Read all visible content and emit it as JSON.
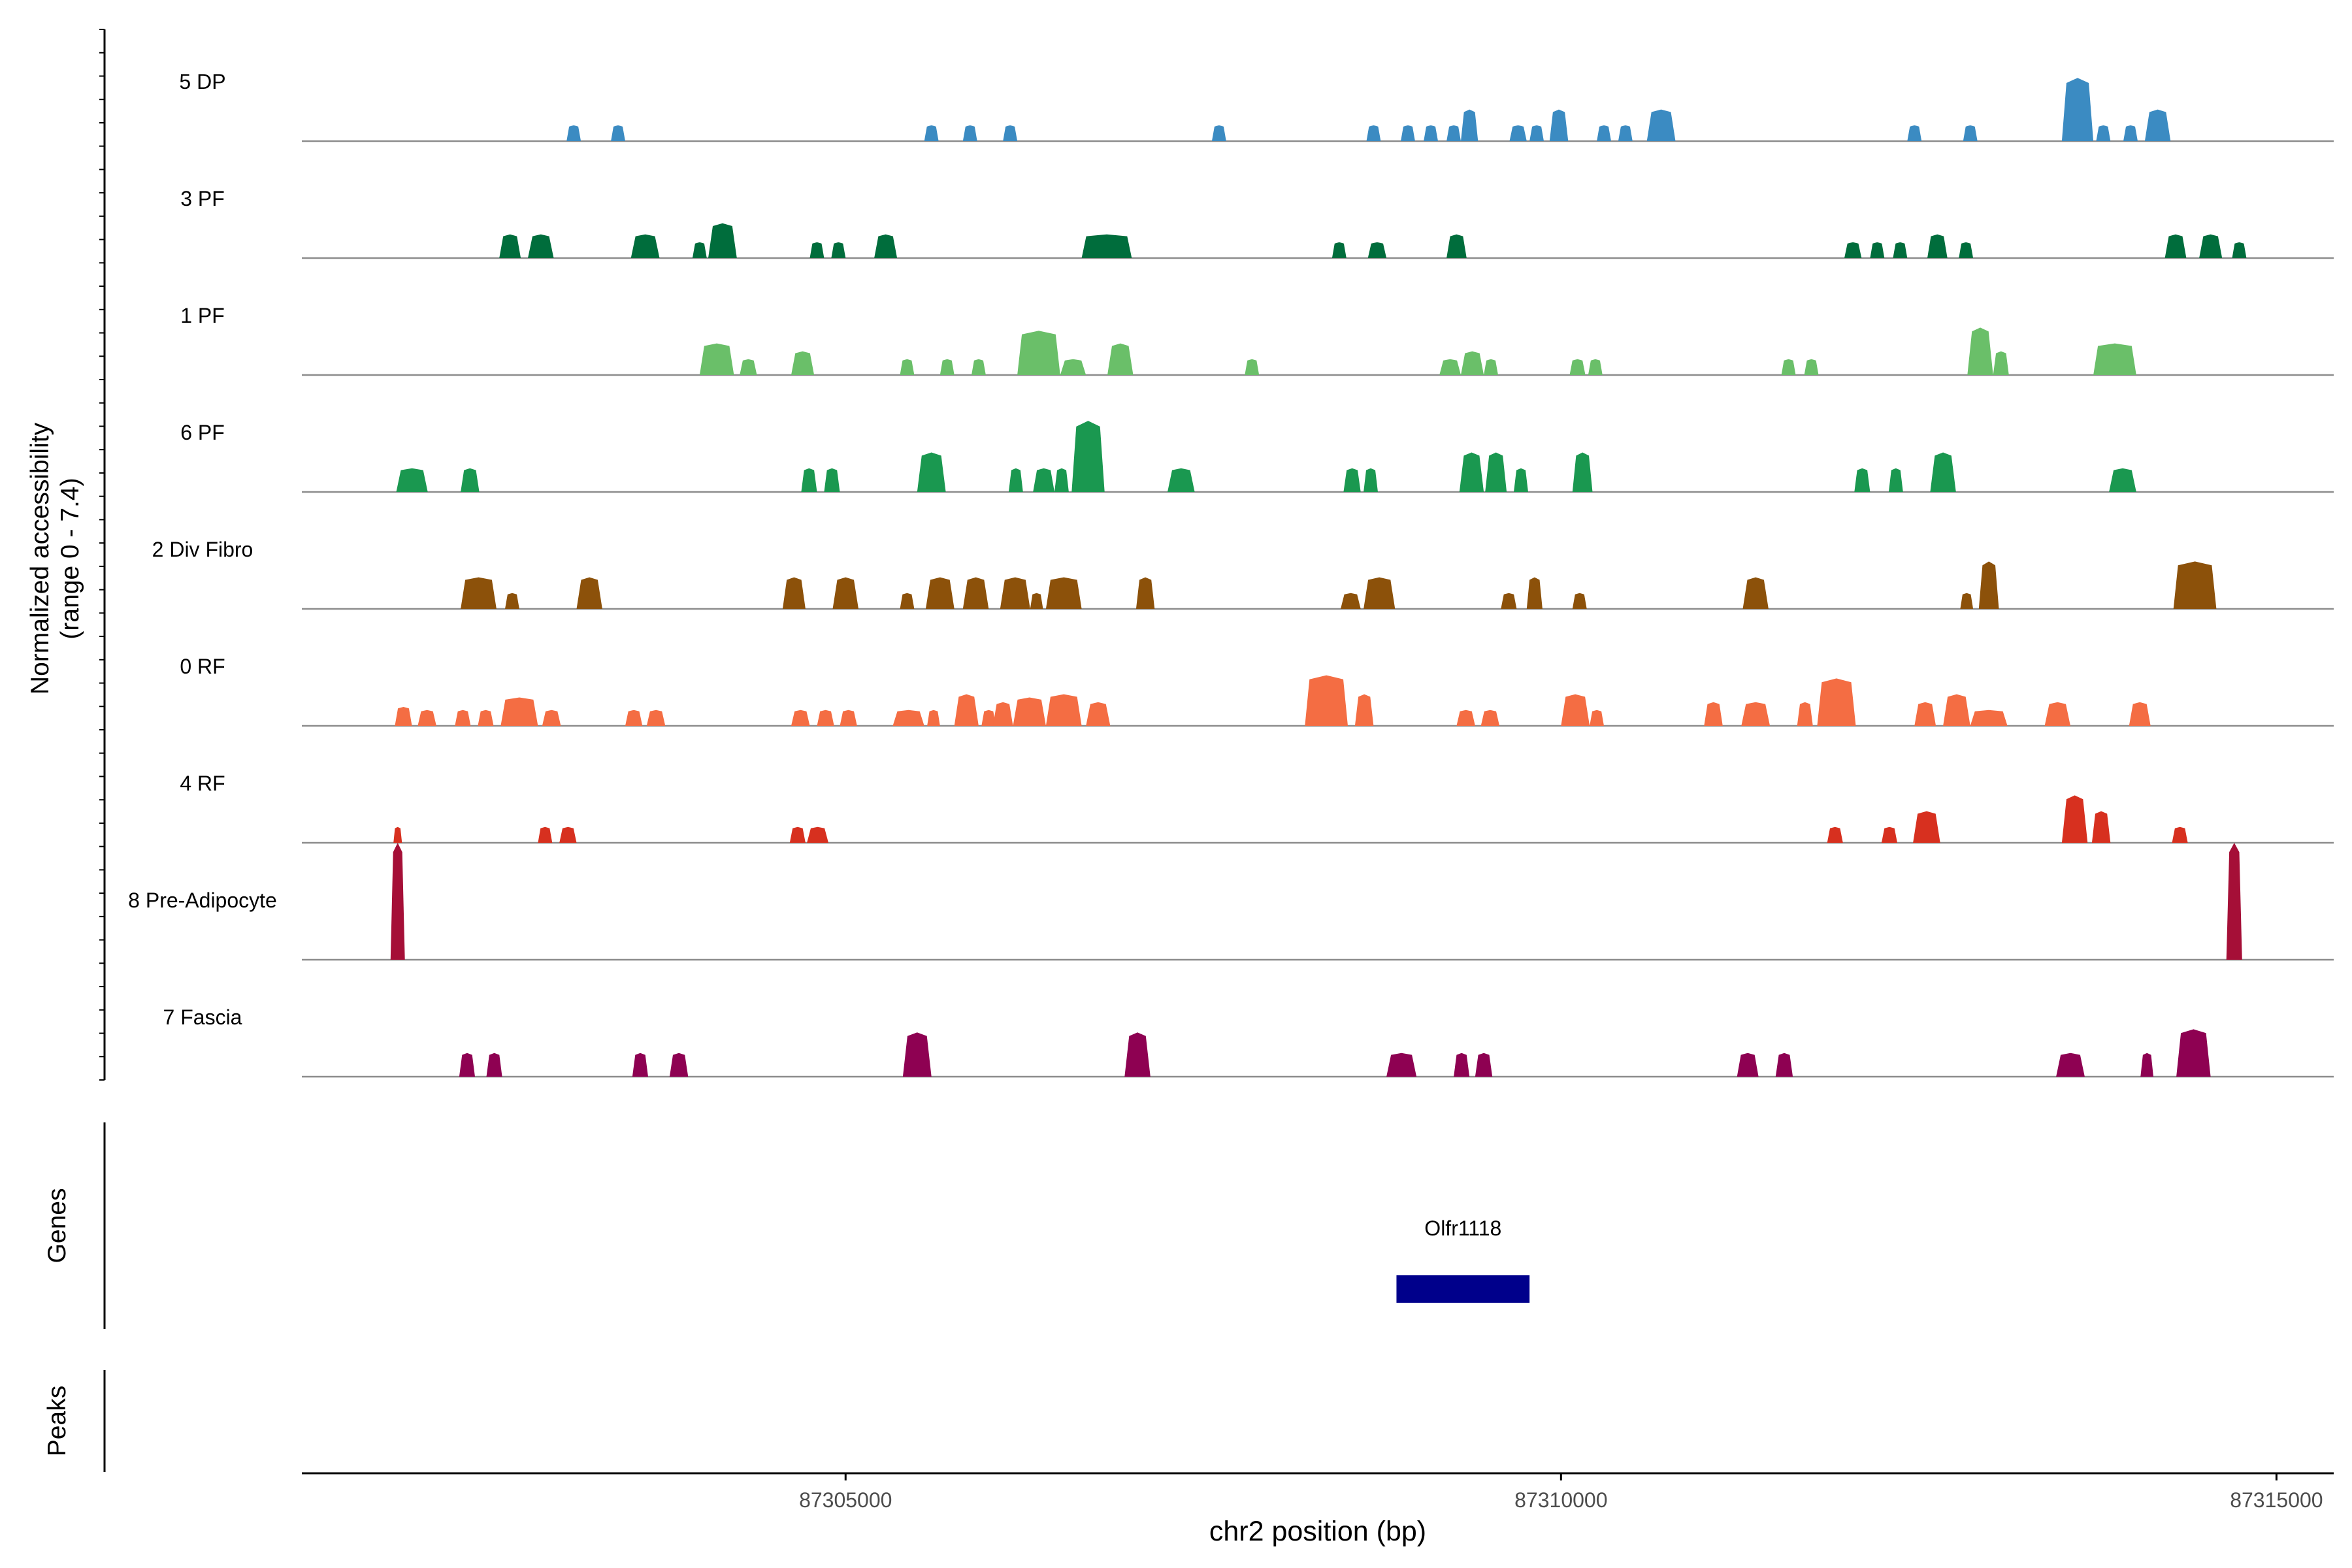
{
  "chart_data": {
    "type": "area",
    "title": "",
    "ylabel_line1": "Normalized accessibility",
    "ylabel_line2": "(range 0 - 7.4)",
    "ylim": [
      0,
      7.4
    ],
    "xlabel": "chr2 position (bp)",
    "xlim": [
      87301200,
      87315400
    ],
    "xticks": [
      87305000,
      87310000,
      87315000
    ],
    "xtick_labels": [
      "87305000",
      "87310000",
      "87315000"
    ],
    "track_labels": {
      "genes": "Genes",
      "peaks": "Peaks"
    },
    "series": [
      {
        "name": "5 DP",
        "color": "#3B8BC2",
        "peaks": [
          [
            87303050,
            87303150,
            1.0
          ],
          [
            87303360,
            87303460,
            1.0
          ],
          [
            87305550,
            87305650,
            1.0
          ],
          [
            87305820,
            87305920,
            1.0
          ],
          [
            87306100,
            87306200,
            1.0
          ],
          [
            87307560,
            87307660,
            1.0
          ],
          [
            87308640,
            87308740,
            1.0
          ],
          [
            87308880,
            87308980,
            1.0
          ],
          [
            87309040,
            87309140,
            1.0
          ],
          [
            87309200,
            87309300,
            1.0
          ],
          [
            87309300,
            87309420,
            2.0
          ],
          [
            87309640,
            87309760,
            1.0
          ],
          [
            87309780,
            87309880,
            1.0
          ],
          [
            87309920,
            87310050,
            2.0
          ],
          [
            87310250,
            87310350,
            1.0
          ],
          [
            87310400,
            87310500,
            1.0
          ],
          [
            87310600,
            87310800,
            2.0
          ],
          [
            87312420,
            87312520,
            1.0
          ],
          [
            87312810,
            87312910,
            1.0
          ],
          [
            87313500,
            87313720,
            4.0
          ],
          [
            87313740,
            87313840,
            1.0
          ],
          [
            87313930,
            87314030,
            1.0
          ],
          [
            87314080,
            87314260,
            2.0
          ]
        ]
      },
      {
        "name": "3 PF",
        "color": "#006D3C",
        "peaks": [
          [
            87302580,
            87302730,
            1.5
          ],
          [
            87302780,
            87302960,
            1.5
          ],
          [
            87303500,
            87303700,
            1.5
          ],
          [
            87303930,
            87304030,
            1.0
          ],
          [
            87304040,
            87304240,
            2.2
          ],
          [
            87304750,
            87304850,
            1.0
          ],
          [
            87304900,
            87305000,
            1.0
          ],
          [
            87305200,
            87305360,
            1.5
          ],
          [
            87306650,
            87307000,
            1.5
          ],
          [
            87308400,
            87308500,
            1.0
          ],
          [
            87308650,
            87308780,
            1.0
          ],
          [
            87309200,
            87309340,
            1.5
          ],
          [
            87311980,
            87312100,
            1.0
          ],
          [
            87312160,
            87312260,
            1.0
          ],
          [
            87312320,
            87312420,
            1.0
          ],
          [
            87312560,
            87312700,
            1.5
          ],
          [
            87312780,
            87312880,
            1.0
          ],
          [
            87314220,
            87314370,
            1.5
          ],
          [
            87314460,
            87314620,
            1.5
          ],
          [
            87314690,
            87314790,
            1.0
          ]
        ]
      },
      {
        "name": "1 PF",
        "color": "#6ABF69",
        "peaks": [
          [
            87303980,
            87304220,
            2.0
          ],
          [
            87304260,
            87304380,
            1.0
          ],
          [
            87304620,
            87304780,
            1.5
          ],
          [
            87305380,
            87305480,
            1.0
          ],
          [
            87305660,
            87305760,
            1.0
          ],
          [
            87305880,
            87305980,
            1.0
          ],
          [
            87306200,
            87306500,
            2.8
          ],
          [
            87306500,
            87306680,
            1.0
          ],
          [
            87306830,
            87307010,
            2.0
          ],
          [
            87307790,
            87307890,
            1.0
          ],
          [
            87309150,
            87309300,
            1.0
          ],
          [
            87309300,
            87309460,
            1.5
          ],
          [
            87309460,
            87309560,
            1.0
          ],
          [
            87310060,
            87310170,
            1.0
          ],
          [
            87310190,
            87310290,
            1.0
          ],
          [
            87311540,
            87311640,
            1.0
          ],
          [
            87311700,
            87311800,
            1.0
          ],
          [
            87312840,
            87313020,
            3.0
          ],
          [
            87313020,
            87313130,
            1.5
          ],
          [
            87313720,
            87314020,
            2.0
          ]
        ]
      },
      {
        "name": "6 PF",
        "color": "#1A9850",
        "peaks": [
          [
            87301860,
            87302080,
            1.5
          ],
          [
            87302310,
            87302440,
            1.5
          ],
          [
            87304690,
            87304800,
            1.5
          ],
          [
            87304850,
            87304960,
            1.5
          ],
          [
            87305500,
            87305700,
            2.5
          ],
          [
            87306140,
            87306240,
            1.5
          ],
          [
            87306310,
            87306460,
            1.5
          ],
          [
            87306460,
            87306560,
            1.5
          ],
          [
            87306580,
            87306810,
            4.5
          ],
          [
            87307250,
            87307440,
            1.5
          ],
          [
            87308480,
            87308600,
            1.5
          ],
          [
            87308620,
            87308720,
            1.5
          ],
          [
            87309290,
            87309460,
            2.5
          ],
          [
            87309470,
            87309620,
            2.5
          ],
          [
            87309670,
            87309770,
            1.5
          ],
          [
            87310080,
            87310220,
            2.5
          ],
          [
            87312050,
            87312160,
            1.5
          ],
          [
            87312290,
            87312390,
            1.5
          ],
          [
            87312580,
            87312760,
            2.5
          ],
          [
            87313830,
            87314020,
            1.5
          ]
        ]
      },
      {
        "name": "2 Div Fibro",
        "color": "#8C510A",
        "peaks": [
          [
            87302310,
            87302560,
            2.0
          ],
          [
            87302620,
            87302720,
            1.0
          ],
          [
            87303120,
            87303300,
            2.0
          ],
          [
            87304560,
            87304720,
            2.0
          ],
          [
            87304910,
            87305090,
            2.0
          ],
          [
            87305380,
            87305480,
            1.0
          ],
          [
            87305560,
            87305760,
            2.0
          ],
          [
            87305820,
            87306000,
            2.0
          ],
          [
            87306080,
            87306290,
            2.0
          ],
          [
            87306290,
            87306380,
            1.0
          ],
          [
            87306400,
            87306650,
            2.0
          ],
          [
            87307030,
            87307160,
            2.0
          ],
          [
            87308460,
            87308600,
            1.0
          ],
          [
            87308620,
            87308840,
            2.0
          ],
          [
            87309580,
            87309690,
            1.0
          ],
          [
            87309760,
            87309870,
            2.0
          ],
          [
            87310080,
            87310180,
            1.0
          ],
          [
            87311270,
            87311450,
            2.0
          ],
          [
            87312790,
            87312880,
            1.0
          ],
          [
            87312920,
            87313060,
            3.0
          ],
          [
            87314280,
            87314580,
            3.0
          ]
        ]
      },
      {
        "name": "0 RF",
        "color": "#F46D43",
        "peaks": [
          [
            87301850,
            87301970,
            1.2
          ],
          [
            87302010,
            87302140,
            1.0
          ],
          [
            87302270,
            87302380,
            1.0
          ],
          [
            87302430,
            87302540,
            1.0
          ],
          [
            87302590,
            87302850,
            1.8
          ],
          [
            87302880,
            87303010,
            1.0
          ],
          [
            87303460,
            87303580,
            1.0
          ],
          [
            87303610,
            87303740,
            1.0
          ],
          [
            87304620,
            87304750,
            1.0
          ],
          [
            87304800,
            87304920,
            1.0
          ],
          [
            87304960,
            87305080,
            1.0
          ],
          [
            87305330,
            87305550,
            1.0
          ],
          [
            87305570,
            87305660,
            1.0
          ],
          [
            87305760,
            87305930,
            2.0
          ],
          [
            87305950,
            87306050,
            1.0
          ],
          [
            87306030,
            87306170,
            1.5
          ],
          [
            87306170,
            87306400,
            1.8
          ],
          [
            87306400,
            87306650,
            2.0
          ],
          [
            87306680,
            87306850,
            1.5
          ],
          [
            87308210,
            87308510,
            3.2
          ],
          [
            87308560,
            87308690,
            2.0
          ],
          [
            87309270,
            87309400,
            1.0
          ],
          [
            87309440,
            87309570,
            1.0
          ],
          [
            87310000,
            87310200,
            2.0
          ],
          [
            87310200,
            87310300,
            1.0
          ],
          [
            87311000,
            87311130,
            1.5
          ],
          [
            87311260,
            87311460,
            1.5
          ],
          [
            87311650,
            87311760,
            1.5
          ],
          [
            87311790,
            87312060,
            3.0
          ],
          [
            87312470,
            87312620,
            1.5
          ],
          [
            87312670,
            87312860,
            2.0
          ],
          [
            87312860,
            87313120,
            1.0
          ],
          [
            87313380,
            87313560,
            1.5
          ],
          [
            87313970,
            87314120,
            1.5
          ]
        ]
      },
      {
        "name": "4 RF",
        "color": "#D7301F",
        "peaks": [
          [
            87301840,
            87301900,
            1.0
          ],
          [
            87302850,
            87302950,
            1.0
          ],
          [
            87303000,
            87303120,
            1.0
          ],
          [
            87304610,
            87304720,
            1.0
          ],
          [
            87304730,
            87304880,
            1.0
          ],
          [
            87311860,
            87311970,
            1.0
          ],
          [
            87312240,
            87312350,
            1.0
          ],
          [
            87312460,
            87312650,
            2.0
          ],
          [
            87313500,
            87313680,
            3.0
          ],
          [
            87313710,
            87313840,
            2.0
          ],
          [
            87314270,
            87314380,
            1.0
          ]
        ]
      },
      {
        "name": "8 Pre-Adipocyte",
        "color": "#A50F37",
        "peaks": [
          [
            87301820,
            87301920,
            7.4
          ],
          [
            87314650,
            87314760,
            7.4
          ]
        ]
      },
      {
        "name": "7 Fascia",
        "color": "#8E0152",
        "peaks": [
          [
            87302300,
            87302410,
            1.5
          ],
          [
            87302490,
            87302600,
            1.5
          ],
          [
            87303510,
            87303620,
            1.5
          ],
          [
            87303770,
            87303900,
            1.5
          ],
          [
            87305400,
            87305600,
            2.8
          ],
          [
            87306950,
            87307130,
            2.8
          ],
          [
            87308780,
            87308990,
            1.5
          ],
          [
            87309250,
            87309360,
            1.5
          ],
          [
            87309400,
            87309520,
            1.5
          ],
          [
            87311230,
            87311380,
            1.5
          ],
          [
            87311500,
            87311620,
            1.5
          ],
          [
            87313460,
            87313660,
            1.5
          ],
          [
            87314050,
            87314140,
            1.5
          ],
          [
            87314300,
            87314540,
            3.0
          ]
        ]
      }
    ],
    "genes": [
      {
        "name": "Olfr1118",
        "start": 87308850,
        "end": 87309780,
        "color": "#00008B"
      }
    ]
  }
}
